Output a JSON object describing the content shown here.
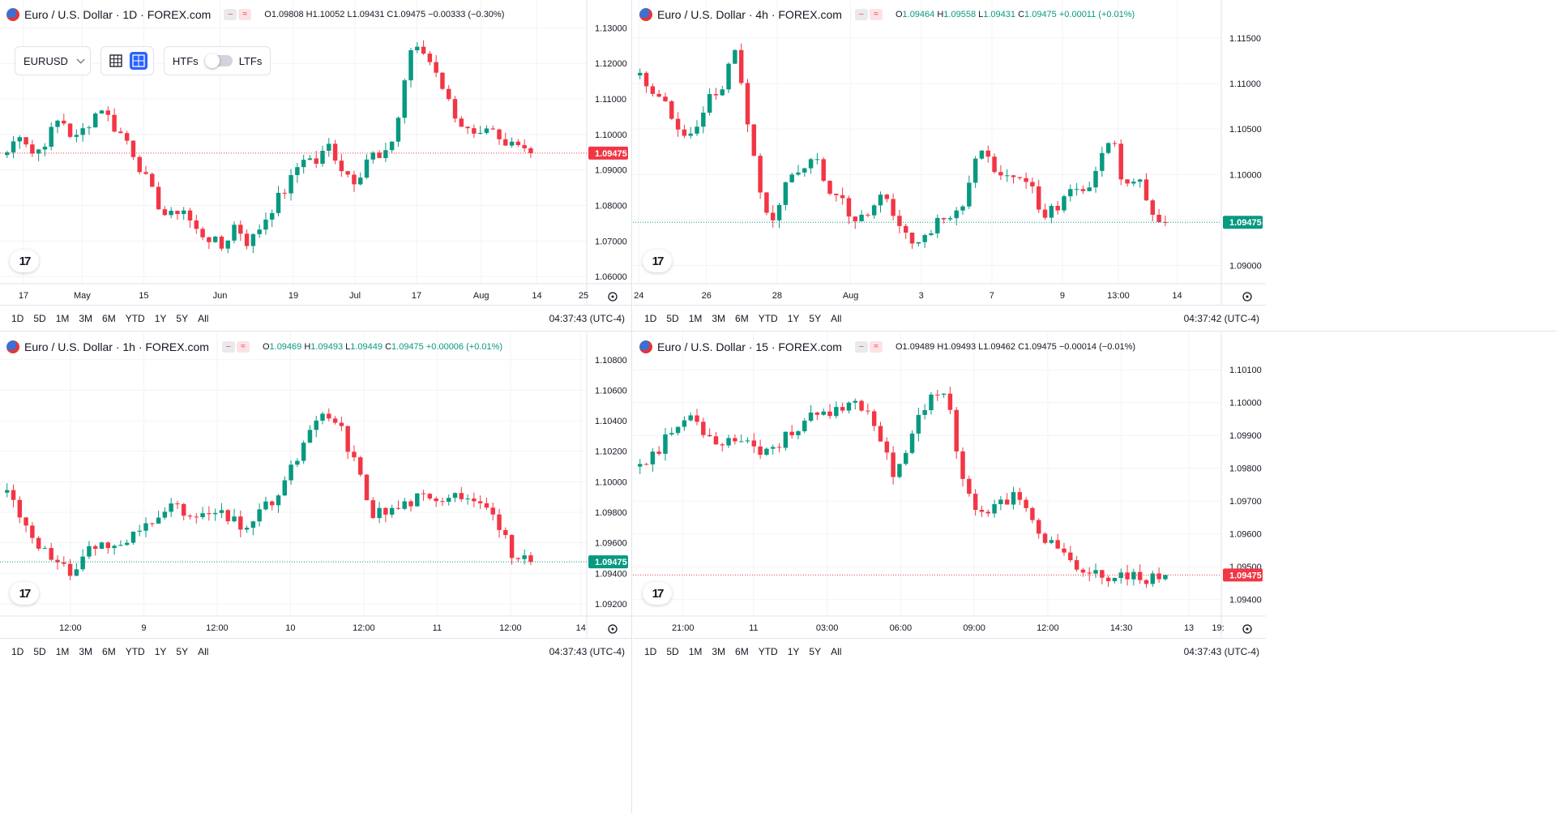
{
  "colors": {
    "up": "#089981",
    "down": "#f23645",
    "grid": "#f2f3f5",
    "accent": "#2962ff"
  },
  "toolbar": {
    "symbol": "EURUSD",
    "htfs_label": "HTFs",
    "ltfs_label": "LTFs",
    "layout_icons": [
      "single-grid-icon",
      "quad-grid-icon"
    ]
  },
  "range_buttons": [
    "1D",
    "5D",
    "1M",
    "3M",
    "6M",
    "YTD",
    "1Y",
    "5Y",
    "All"
  ],
  "panes": [
    {
      "title": "Euro / U.S. Dollar · 1D · FOREX.com",
      "ohlc": {
        "o": "1.09808",
        "h": "1.10052",
        "l": "1.09431",
        "c": "1.09475",
        "chg": "−0.00333 (−0.30%)",
        "dir": "down"
      },
      "price_tag": "1.09475",
      "clock": "04:37:43 (UTC-4)",
      "y_labels": [
        "1.13000",
        "1.12000",
        "1.11000",
        "1.10000",
        "1.09000",
        "1.08000",
        "1.07000",
        "1.06000"
      ],
      "x_labels": [
        "17",
        "May",
        "15",
        "Jun",
        "19",
        "Jul",
        "17",
        "Aug",
        "14",
        "25"
      ]
    },
    {
      "title": "Euro / U.S. Dollar · 4h · FOREX.com",
      "ohlc": {
        "o": "1.09464",
        "h": "1.09558",
        "l": "1.09431",
        "c": "1.09475",
        "chg": "+0.00011 (+0.01%)",
        "dir": "up"
      },
      "price_tag": "1.09475",
      "clock": "04:37:42 (UTC-4)",
      "y_labels": [
        "1.11500",
        "1.11000",
        "1.10500",
        "1.10000",
        "1.09500",
        "1.09000"
      ],
      "x_labels": [
        "24",
        "26",
        "28",
        "Aug",
        "3",
        "7",
        "9",
        "13:00",
        "14"
      ]
    },
    {
      "title": "Euro / U.S. Dollar · 1h · FOREX.com",
      "ohlc": {
        "o": "1.09469",
        "h": "1.09493",
        "l": "1.09449",
        "c": "1.09475",
        "chg": "+0.00006 (+0.01%)",
        "dir": "up"
      },
      "price_tag": "1.09475",
      "clock": "04:37:43 (UTC-4)",
      "y_labels": [
        "1.10800",
        "1.10600",
        "1.10400",
        "1.10200",
        "1.10000",
        "1.09800",
        "1.09600",
        "1.09400",
        "1.09200"
      ],
      "x_labels": [
        "12:00",
        "9",
        "12:00",
        "10",
        "12:00",
        "11",
        "12:00",
        "14"
      ]
    },
    {
      "title": "Euro / U.S. Dollar · 15 · FOREX.com",
      "ohlc": {
        "o": "1.09489",
        "h": "1.09493",
        "l": "1.09462",
        "c": "1.09475",
        "chg": "−0.00014 (−0.01%)",
        "dir": "down"
      },
      "price_tag": "1.09475",
      "clock": "04:37:43 (UTC-4)",
      "y_labels": [
        "1.10100",
        "1.10000",
        "1.09900",
        "1.09800",
        "1.09700",
        "1.09600",
        "1.09500",
        "1.09400"
      ],
      "x_labels": [
        "21:00",
        "11",
        "03:00",
        "06:00",
        "09:00",
        "12:00",
        "14:30",
        "13",
        "19:"
      ]
    }
  ],
  "chart_data": [
    {
      "type": "candlestick",
      "title": "Euro / U.S. Dollar · 1D · FOREX.com",
      "ylim": [
        1.058,
        1.131
      ],
      "last": 1.09475,
      "close_path": [
        1.095,
        1.101,
        1.094,
        1.099,
        1.105,
        1.098,
        1.103,
        1.108,
        1.102,
        1.098,
        1.09,
        1.082,
        1.076,
        1.08,
        1.073,
        1.071,
        1.068,
        1.075,
        1.069,
        1.075,
        1.081,
        1.086,
        1.094,
        1.092,
        1.097,
        1.09,
        1.087,
        1.095,
        1.092,
        1.102,
        1.124,
        1.123,
        1.118,
        1.108,
        1.102,
        1.098,
        1.101,
        1.096,
        1.099,
        1.09475
      ]
    },
    {
      "type": "candlestick",
      "title": "Euro / U.S. Dollar · 4h · FOREX.com",
      "ylim": [
        1.088,
        1.1165
      ],
      "last": 1.09475,
      "close_path": [
        1.1105,
        1.1085,
        1.1075,
        1.1045,
        1.105,
        1.108,
        1.109,
        1.1135,
        1.1055,
        1.0975,
        1.095,
        1.101,
        1.0995,
        1.1025,
        1.0985,
        1.097,
        1.0945,
        1.096,
        1.0985,
        1.0945,
        1.093,
        1.0925,
        1.0945,
        1.095,
        1.0965,
        1.103,
        1.101,
        1.099,
        1.1005,
        1.0985,
        1.0955,
        1.0965,
        1.0985,
        1.0975,
        1.1015,
        1.104,
        1.0985,
        1.0995,
        1.096,
        1.09475
      ]
    },
    {
      "type": "candlestick",
      "title": "Euro / U.S. Dollar · 1h · FOREX.com",
      "ylim": [
        1.0912,
        1.1082
      ],
      "last": 1.09475,
      "close_path": [
        1.0995,
        1.0975,
        1.096,
        1.0945,
        1.094,
        1.0955,
        1.096,
        1.0955,
        1.0965,
        1.0975,
        1.0985,
        1.098,
        1.0975,
        1.098,
        1.0975,
        1.097,
        1.098,
        1.099,
        1.101,
        1.103,
        1.1045,
        1.1035,
        1.101,
        1.098,
        1.098,
        1.0985,
        1.099,
        1.0985,
        1.0995,
        1.099,
        1.099,
        1.097,
        1.095,
        1.09475
      ]
    },
    {
      "type": "candlestick",
      "title": "Euro / U.S. Dollar · 15 · FOREX.com",
      "ylim": [
        1.0935,
        1.1014
      ],
      "last": 1.09475,
      "close_path": [
        1.0982,
        1.0985,
        1.0992,
        1.0996,
        1.099,
        1.0988,
        1.099,
        1.0985,
        1.0987,
        1.0991,
        1.0997,
        1.0995,
        1.0998,
        1.1,
        1.0992,
        1.0978,
        1.099,
        1.1,
        1.1005,
        1.0978,
        1.0965,
        1.0968,
        1.0972,
        1.0965,
        1.0958,
        1.0955,
        1.0946,
        1.0948,
        1.0945,
        1.0949,
        1.0946,
        1.09475
      ]
    }
  ]
}
